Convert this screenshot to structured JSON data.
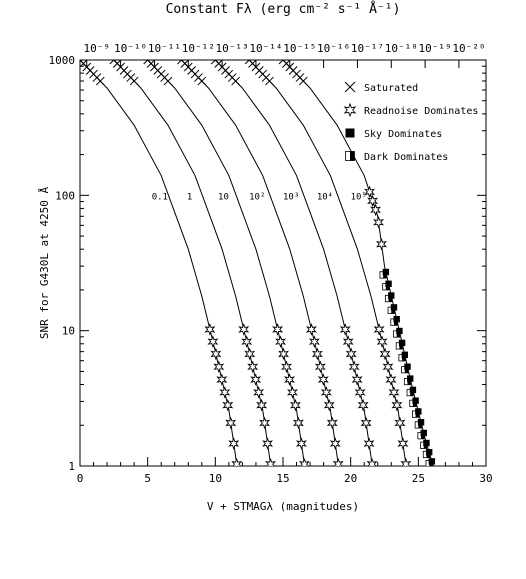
{
  "chart_data": {
    "type": "line",
    "title": "Constant Fλ (erg cm⁻² s⁻¹ Å⁻¹)",
    "xlabel": "V + STMAGλ (magnitudes)",
    "ylabel": "SNR for G430L at 4250 Å",
    "xlim": [
      0,
      30
    ],
    "ylim": [
      1,
      1000
    ],
    "yscale": "log",
    "x_ticks": [
      0,
      5,
      10,
      15,
      20,
      25,
      30
    ],
    "y_ticks": [
      {
        "value": 1,
        "label": "1"
      },
      {
        "value": 10,
        "label": "10"
      },
      {
        "value": 100,
        "label": "100"
      },
      {
        "value": 1000,
        "label": "1000"
      }
    ],
    "top_axis_labels": [
      "10⁻⁹",
      "10⁻¹⁰",
      "10⁻¹¹",
      "10⁻¹²",
      "10⁻¹³",
      "10⁻¹⁴",
      "10⁻¹⁵",
      "10⁻¹⁶",
      "10⁻¹⁷",
      "10⁻¹⁸",
      "10⁻¹⁹",
      "10⁻²⁰"
    ],
    "top_axis_positions": [
      0.5,
      3.0,
      5.5,
      8.0,
      10.5,
      13.0,
      15.5,
      18.0,
      20.5,
      23.0,
      25.5,
      28.0
    ],
    "legend_position": "top-right",
    "legend": [
      {
        "label": "Saturated",
        "marker": "x"
      },
      {
        "label": "Readnoise Dominates",
        "marker": "star"
      },
      {
        "label": "Sky Dominates",
        "marker": "filled-square"
      },
      {
        "label": "Dark Dominates",
        "marker": "half-square"
      }
    ],
    "series": [
      {
        "name": "0.1",
        "label_x": 5.9,
        "label_y": 100,
        "points": [
          [
            0,
            1000
          ],
          [
            2,
            620
          ],
          [
            4,
            330
          ],
          [
            6,
            140
          ],
          [
            8,
            40
          ],
          [
            9,
            18
          ],
          [
            10,
            7
          ],
          [
            11,
            2.6
          ],
          [
            11.6,
            1
          ]
        ],
        "sat_x": [
          0,
          1.5
        ],
        "read_x": [
          9.6,
          11.7
        ],
        "sky_x": null,
        "dark_x": null
      },
      {
        "name": "1",
        "label_x": 8.1,
        "label_y": 100,
        "points": [
          [
            2.5,
            1000
          ],
          [
            4.5,
            620
          ],
          [
            6.5,
            330
          ],
          [
            8.5,
            140
          ],
          [
            10.5,
            40
          ],
          [
            11.5,
            18
          ],
          [
            12.5,
            7
          ],
          [
            13.5,
            2.6
          ],
          [
            14.1,
            1
          ]
        ],
        "sat_x": [
          2.5,
          4.0
        ],
        "read_x": [
          12.1,
          14.2
        ],
        "sky_x": null,
        "dark_x": null
      },
      {
        "name": "10",
        "label_x": 10.6,
        "label_y": 100,
        "points": [
          [
            5,
            1000
          ],
          [
            7,
            620
          ],
          [
            9,
            330
          ],
          [
            11,
            140
          ],
          [
            13,
            40
          ],
          [
            14,
            18
          ],
          [
            15,
            7
          ],
          [
            16,
            2.6
          ],
          [
            16.6,
            1
          ]
        ],
        "sat_x": [
          5.0,
          6.5
        ],
        "read_x": [
          14.6,
          16.7
        ],
        "sky_x": null,
        "dark_x": null
      },
      {
        "name": "10²",
        "label_x": 13.1,
        "label_y": 100,
        "points": [
          [
            7.5,
            1000
          ],
          [
            9.5,
            620
          ],
          [
            11.5,
            330
          ],
          [
            13.5,
            140
          ],
          [
            15.5,
            40
          ],
          [
            16.5,
            18
          ],
          [
            17.5,
            7
          ],
          [
            18.5,
            2.6
          ],
          [
            19.1,
            1
          ]
        ],
        "sat_x": [
          7.5,
          9.0
        ],
        "read_x": [
          17.1,
          19.2
        ],
        "sky_x": null,
        "dark_x": null
      },
      {
        "name": "10³",
        "label_x": 15.6,
        "label_y": 100,
        "points": [
          [
            10,
            1000
          ],
          [
            12,
            620
          ],
          [
            14,
            330
          ],
          [
            16,
            140
          ],
          [
            18,
            40
          ],
          [
            19,
            18
          ],
          [
            20,
            7
          ],
          [
            21,
            2.6
          ],
          [
            21.6,
            1
          ]
        ],
        "sat_x": [
          10.0,
          11.5
        ],
        "read_x": [
          19.6,
          21.7
        ],
        "sky_x": null,
        "dark_x": null
      },
      {
        "name": "10⁴",
        "label_x": 18.1,
        "label_y": 100,
        "points": [
          [
            12.5,
            1000
          ],
          [
            14.5,
            620
          ],
          [
            16.5,
            330
          ],
          [
            18.5,
            140
          ],
          [
            20.5,
            40
          ],
          [
            21.5,
            18
          ],
          [
            22.5,
            7
          ],
          [
            23.5,
            2.6
          ],
          [
            24.1,
            1
          ]
        ],
        "sat_x": [
          12.5,
          14.0
        ],
        "read_x": [
          22.1,
          24.2
        ],
        "sky_x": null,
        "dark_x": null
      },
      {
        "name": "10⁵",
        "label_x": 20.6,
        "label_y": 100,
        "points": [
          [
            15,
            1000
          ],
          [
            17,
            620
          ],
          [
            19,
            330
          ],
          [
            21,
            140
          ],
          [
            22,
            70
          ],
          [
            22.5,
            30
          ],
          [
            23.5,
            11
          ],
          [
            24.5,
            4
          ],
          [
            25.5,
            1.6
          ],
          [
            26.1,
            1
          ]
        ],
        "sat_x": [
          15.0,
          16.5
        ],
        "read_x": [
          21.4,
          22.3
        ],
        "sky_x": [
          22.6,
          26.3
        ],
        "dark_x": [
          22.4,
          26.0
        ]
      }
    ]
  }
}
